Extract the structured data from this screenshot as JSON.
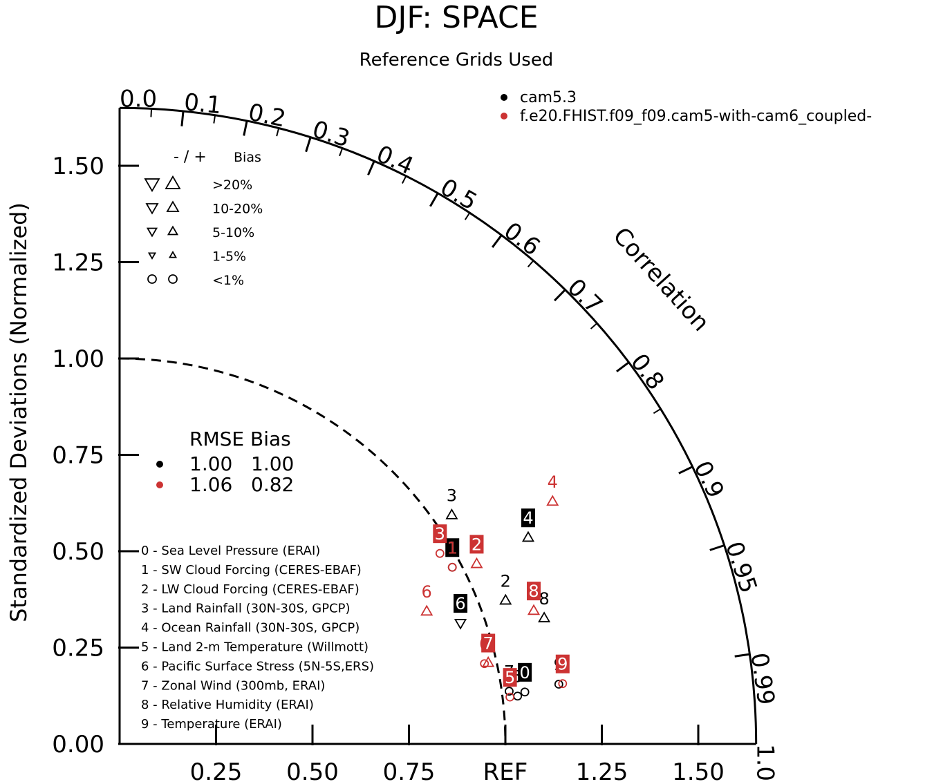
{
  "chart_data": {
    "type": "taylor",
    "title": "DJF: SPACE",
    "subtitle": "Reference Grids Used",
    "ylabel": "Standardized Deviations (Normalized)",
    "corr_label": "Correlation",
    "ref_label": "REF",
    "std_max": 1.65,
    "ref_std": 1.0,
    "y_ticks": [
      "0.00",
      "0.25",
      "0.50",
      "0.75",
      "1.00",
      "1.25",
      "1.50"
    ],
    "y_tick_values": [
      0,
      0.25,
      0.5,
      0.75,
      1.0,
      1.25,
      1.5
    ],
    "x_ticks": [
      "0.25",
      "0.50",
      "0.75",
      "REF",
      "1.25",
      "1.50"
    ],
    "x_tick_values": [
      0.25,
      0.5,
      0.75,
      1.0,
      1.25,
      1.5
    ],
    "corr_ticks_major": [
      0.0,
      0.1,
      0.2,
      0.3,
      0.4,
      0.5,
      0.6,
      0.7,
      0.8,
      0.9,
      0.95,
      0.99,
      1.0
    ],
    "corr_tick_labels": [
      "0.0",
      "0.1",
      "0.2",
      "0.3",
      "0.4",
      "0.5",
      "0.6",
      "0.7",
      "0.8",
      "0.9",
      "0.95",
      "0.99",
      "1.0"
    ],
    "corr_ticks_minor": [
      0.05,
      0.15,
      0.25,
      0.35,
      0.45,
      0.55,
      0.65,
      0.75,
      0.85
    ],
    "series": [
      {
        "name": "cam5.3",
        "color": "#000000",
        "rmse": "1.00",
        "bias": "1.00",
        "points": [
          {
            "id": "0",
            "std": 1.06,
            "corr": 0.991,
            "marker": "circle",
            "boxed": true
          },
          {
            "id": "1",
            "std": 0.98,
            "corr": 0.88,
            "marker": "circle",
            "boxed": true
          },
          {
            "id": "2",
            "std": 1.07,
            "corr": 0.935,
            "marker": "up",
            "boxed": false
          },
          {
            "id": "3",
            "std": 1.05,
            "corr": 0.82,
            "marker": "up",
            "boxed": false
          },
          {
            "id": "4",
            "std": 1.19,
            "corr": 0.89,
            "marker": "up",
            "boxed": true
          },
          {
            "id": "5",
            "std": 1.04,
            "corr": 0.992,
            "marker": "circle",
            "boxed": false
          },
          {
            "id": "6",
            "std": 0.94,
            "corr": 0.94,
            "marker": "down",
            "boxed": true
          },
          {
            "id": "7",
            "std": 1.02,
            "corr": 0.99,
            "marker": "circle",
            "boxed": false
          },
          {
            "id": "8",
            "std": 1.15,
            "corr": 0.957,
            "marker": "up",
            "boxed": false
          },
          {
            "id": "9",
            "std": 1.15,
            "corr": 0.99,
            "marker": "circle",
            "boxed": false
          }
        ]
      },
      {
        "name": "f.e20.FHIST.f09_f09.cam5-with-cam6_coupled-",
        "color": "#cc3333",
        "rmse": "1.06",
        "bias": "0.82",
        "points": [
          {
            "id": "0",
            "std": 0.97,
            "corr": 0.975,
            "marker": "circle",
            "boxed": false
          },
          {
            "id": "1",
            "std": 0.98,
            "corr": 0.88,
            "marker": "circle",
            "boxed": false
          },
          {
            "id": "2",
            "std": 1.04,
            "corr": 0.89,
            "marker": "up",
            "boxed": true
          },
          {
            "id": "3",
            "std": 0.97,
            "corr": 0.856,
            "marker": "circle",
            "boxed": true
          },
          {
            "id": "4",
            "std": 1.29,
            "corr": 0.87,
            "marker": "up",
            "boxed": false
          },
          {
            "id": "5",
            "std": 1.02,
            "corr": 0.992,
            "marker": "circle",
            "boxed": true
          },
          {
            "id": "6",
            "std": 0.87,
            "corr": 0.915,
            "marker": "up",
            "boxed": false
          },
          {
            "id": "7",
            "std": 0.98,
            "corr": 0.975,
            "marker": "up",
            "boxed": true
          },
          {
            "id": "8",
            "std": 1.13,
            "corr": 0.95,
            "marker": "up",
            "boxed": true
          },
          {
            "id": "9",
            "std": 1.16,
            "corr": 0.99,
            "marker": "circle",
            "boxed": true
          }
        ]
      }
    ],
    "bias_legend": {
      "header_sign": "-  /  +",
      "header_label": "Bias",
      "rows": [
        {
          "label": ">20%",
          "size": "xl"
        },
        {
          "label": "10-20%",
          "size": "l"
        },
        {
          "label": "5-10%",
          "size": "m"
        },
        {
          "label": "1-5%",
          "size": "s"
        },
        {
          "label": "<1%",
          "size": "circle"
        }
      ]
    },
    "rmse_legend": {
      "header": "RMSE Bias"
    },
    "categories": [
      "0 - Sea Level Pressure (ERAI)",
      "1 - SW Cloud Forcing (CERES-EBAF)",
      "2 - LW Cloud Forcing (CERES-EBAF)",
      "3 - Land Rainfall (30N-30S, GPCP)",
      "4 - Ocean Rainfall (30N-30S, GPCP)",
      "5 - Land 2-m Temperature (Willmott)",
      "6 - Pacific Surface Stress (5N-5S,ERS)",
      "7 - Zonal Wind (300mb, ERAI)",
      "8 - Relative Humidity (ERAI)",
      "9 - Temperature (ERAI)"
    ]
  }
}
